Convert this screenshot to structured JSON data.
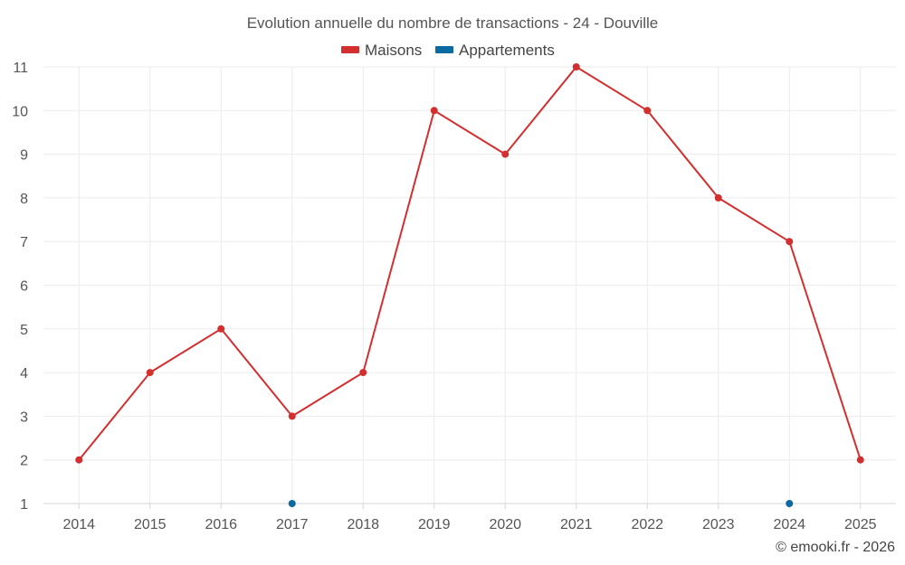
{
  "chart_data": {
    "type": "line",
    "title": "Evolution annuelle du nombre de transactions - 24 - Douville",
    "categories": [
      "2014",
      "2015",
      "2016",
      "2017",
      "2018",
      "2019",
      "2020",
      "2021",
      "2022",
      "2023",
      "2024",
      "2025"
    ],
    "series": [
      {
        "name": "Maisons",
        "color": "#d32f2f",
        "values": [
          2,
          4,
          5,
          3,
          4,
          10,
          9,
          11,
          10,
          8,
          7,
          2
        ]
      },
      {
        "name": "Appartements",
        "color": "#0a6aa1",
        "values": [
          null,
          null,
          null,
          1,
          null,
          null,
          null,
          null,
          null,
          null,
          1,
          null
        ]
      }
    ],
    "ylim": [
      1,
      11
    ],
    "yticks": [
      1,
      2,
      3,
      4,
      5,
      6,
      7,
      8,
      9,
      10,
      11
    ],
    "xlabel": "",
    "ylabel": "",
    "grid": true,
    "legend_position": "top-center"
  },
  "credit": "© emooki.fr - 2026"
}
